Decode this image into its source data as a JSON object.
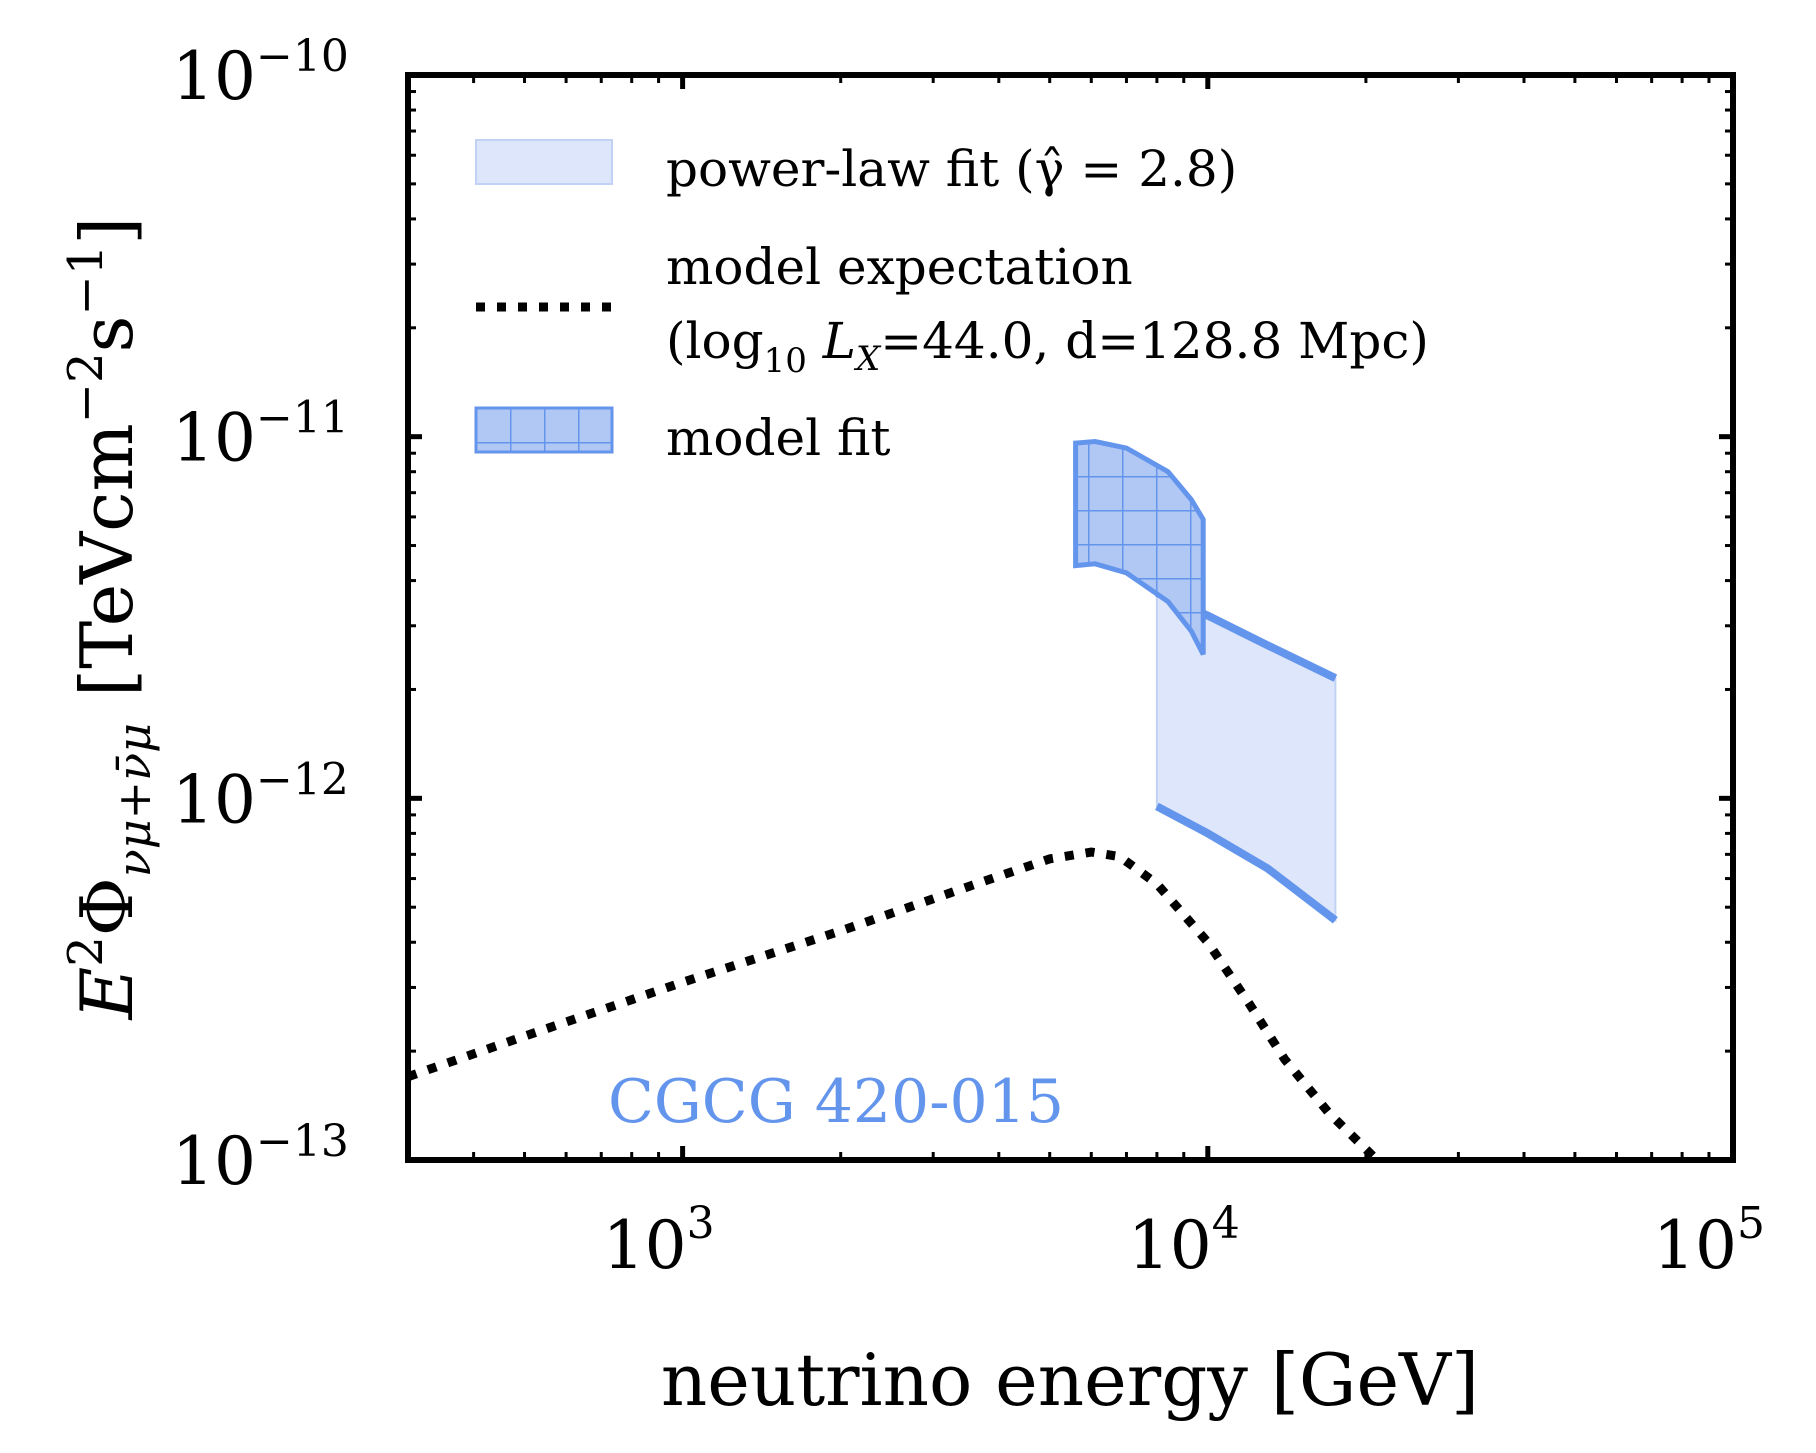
{
  "chart_data": {
    "type": "area",
    "x_scale": "log",
    "y_scale": "log",
    "xlim": [
      300,
      100000
    ],
    "ylim": [
      1e-13,
      1e-10
    ],
    "xlabel": "neutrino energy [GeV]",
    "ylabel": "E²Φ_{ν_μ+ν̄_μ} [TeVcm⁻²s⁻¹]",
    "ylabel_parts": {
      "E": "E",
      "sq": "2",
      "Phi": "Φ",
      "sub": "νμ+ν̄μ",
      "unit_open": "[TeVcm",
      "unit_exp1": "−2",
      "unit_s": "s",
      "unit_exp2": "−1",
      "unit_close": "]"
    },
    "x_ticks": [
      {
        "value": 1000,
        "base": "10",
        "exp": "3"
      },
      {
        "value": 10000,
        "base": "10",
        "exp": "4"
      },
      {
        "value": 100000,
        "base": "10",
        "exp": "5"
      }
    ],
    "y_ticks": [
      {
        "value": 1e-13,
        "base": "10",
        "exp": "−13"
      },
      {
        "value": 1e-12,
        "base": "10",
        "exp": "−12"
      },
      {
        "value": 1e-11,
        "base": "10",
        "exp": "−11"
      },
      {
        "value": 1e-10,
        "base": "10",
        "exp": "−10"
      }
    ],
    "annotation": {
      "text": "CGCG 420-015",
      "color": "#6495ED"
    },
    "series": [
      {
        "name": "power-law fit",
        "legend_label": "power-law fit (γ̂ = 2.8)",
        "kind": "band",
        "color": "#6495ED",
        "fill": "#dde6fa",
        "x": [
          8000,
          10000,
          13000,
          17500
        ],
        "upper": [
          3.7e-12,
          3.2e-12,
          2.65e-12,
          2.15e-12
        ],
        "lower": [
          9.5e-13,
          8e-13,
          6.4e-13,
          4.6e-13
        ]
      },
      {
        "name": "model expectation",
        "legend_label_line1": "model expectation",
        "legend_label_line2": "(log₁₀ L_X=44.0, d=128.8 Mpc)",
        "legend_parts": {
          "open": "(log",
          "sub": "10",
          "mid": " L",
          "lx": "X",
          "rest": "=44.0, d=128.8 Mpc)"
        },
        "kind": "line",
        "style": "dotted",
        "color": "#000000",
        "x": [
          300,
          500,
          1000,
          2000,
          3500,
          5000,
          6000,
          6800,
          8000,
          10000,
          12000,
          14000,
          17000,
          21000
        ],
        "y": [
          1.7e-13,
          2.2e-13,
          3.1e-13,
          4.3e-13,
          5.7e-13,
          6.8e-13,
          7.1e-13,
          6.9e-13,
          5.8e-13,
          4e-13,
          2.7e-13,
          1.9e-13,
          1.35e-13,
          1e-13
        ]
      },
      {
        "name": "model fit",
        "legend_label": "model fit",
        "kind": "hatched_band",
        "color": "#6495ED",
        "fill": "#b1c8f4",
        "x_upper": [
          5600,
          6100,
          7000,
          8400,
          9300,
          9800
        ],
        "upper": [
          9.6e-12,
          9.7e-12,
          9.3e-12,
          8e-12,
          6.7e-12,
          5.9e-12
        ],
        "x_lower": [
          5600,
          6100,
          7000,
          8400,
          9300,
          9800
        ],
        "lower": [
          4.4e-12,
          4.45e-12,
          4.2e-12,
          3.5e-12,
          2.9e-12,
          2.5e-12
        ]
      }
    ],
    "legend": {
      "position": "top-left"
    }
  }
}
